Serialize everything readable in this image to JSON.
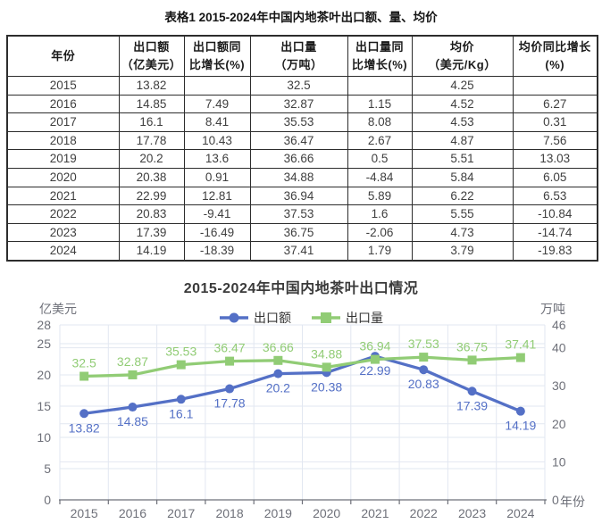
{
  "table": {
    "title": "表格1 2015-2024年中国内地茶叶出口额、量、均价",
    "headers": [
      [
        "年份"
      ],
      [
        "出口额",
        "（亿美元）"
      ],
      [
        "出口额同",
        "比增长(%)"
      ],
      [
        "出口量",
        "（万吨）"
      ],
      [
        "出口量同",
        "比增长(%)"
      ],
      [
        "均价",
        "（美元/Kg）"
      ],
      [
        "均价同比增长",
        "(%)"
      ]
    ],
    "rows": [
      [
        "2015",
        "13.82",
        "",
        "32.5",
        "",
        "4.25",
        ""
      ],
      [
        "2016",
        "14.85",
        "7.49",
        "32.87",
        "1.15",
        "4.52",
        "6.27"
      ],
      [
        "2017",
        "16.1",
        "8.41",
        "35.53",
        "8.08",
        "4.53",
        "0.31"
      ],
      [
        "2018",
        "17.78",
        "10.43",
        "36.47",
        "2.67",
        "4.87",
        "7.56"
      ],
      [
        "2019",
        "20.2",
        "13.6",
        "36.66",
        "0.5",
        "5.51",
        "13.03"
      ],
      [
        "2020",
        "20.38",
        "0.91",
        "34.88",
        "-4.84",
        "5.84",
        "6.05"
      ],
      [
        "2021",
        "22.99",
        "12.81",
        "36.94",
        "5.89",
        "6.22",
        "6.53"
      ],
      [
        "2022",
        "20.83",
        "-9.41",
        "37.53",
        "1.6",
        "5.55",
        "-10.84"
      ],
      [
        "2023",
        "17.39",
        "-16.49",
        "36.75",
        "-2.06",
        "4.73",
        "-14.74"
      ],
      [
        "2024",
        "14.19",
        "-18.39",
        "37.41",
        "1.79",
        "3.79",
        "-19.83"
      ]
    ]
  },
  "chart_data": {
    "type": "line",
    "title": "2015-2024年中国内地茶叶出口情况",
    "categories": [
      "2015",
      "2016",
      "2017",
      "2018",
      "2019",
      "2020",
      "2021",
      "2022",
      "2023",
      "2024"
    ],
    "series": [
      {
        "name": "出口额",
        "axis": "left",
        "color": "#5470C6",
        "marker": "circle",
        "label_position": "below",
        "values": [
          13.82,
          14.85,
          16.1,
          17.78,
          20.2,
          20.38,
          22.99,
          20.83,
          17.39,
          14.19
        ]
      },
      {
        "name": "出口量",
        "axis": "right",
        "color": "#91CC75",
        "marker": "square",
        "label_position": "above",
        "values": [
          32.5,
          32.87,
          35.53,
          36.47,
          36.66,
          34.88,
          36.94,
          37.53,
          36.75,
          37.41
        ]
      }
    ],
    "left_axis": {
      "name": "亿美元",
      "max": 28,
      "ticks": [
        0,
        5,
        10,
        15,
        20,
        25,
        28
      ]
    },
    "right_axis": {
      "name": "万吨",
      "max": 46,
      "ticks": [
        0,
        10,
        20,
        30,
        40,
        46
      ]
    },
    "x_axis_name": "年份",
    "legend_position": "top-center",
    "grid": true,
    "colors": {
      "grid_line": "#e2e7f1",
      "axis_line": "#6e7079",
      "tick_text": "#6e7079",
      "background": "#ffffff"
    }
  }
}
